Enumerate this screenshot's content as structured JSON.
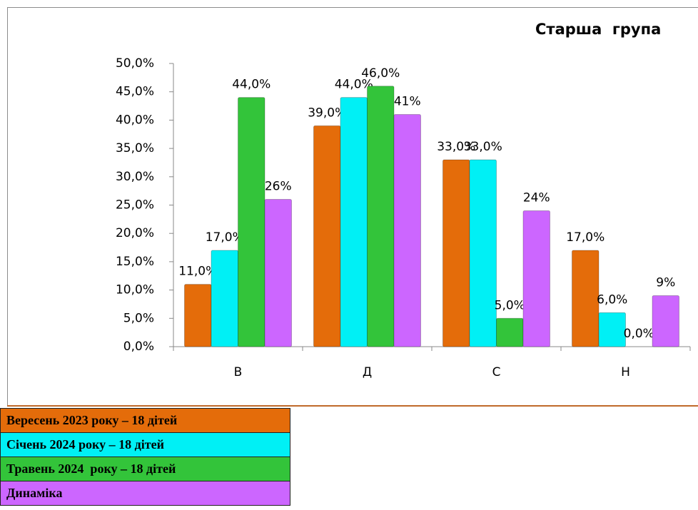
{
  "chart_data": {
    "type": "bar",
    "title": "Старша  група",
    "categories": [
      "В",
      "Д",
      "С",
      "Н"
    ],
    "series": [
      {
        "name": "Вересень 2023 року – 18 дітей",
        "color": "#E46C0A",
        "values": [
          11,
          39,
          33,
          17
        ],
        "value_labels": [
          "11,0%",
          "39,0%",
          "33,0%",
          "17,0%"
        ]
      },
      {
        "name": "Січень 2024 року – 18 дітей",
        "color": "#00F0F5",
        "values": [
          17,
          44,
          33,
          6
        ],
        "value_labels": [
          "17,0%",
          "44,0%",
          "33,0%",
          "6,0%"
        ]
      },
      {
        "name": "Травень 2024  року – 18 дітей",
        "color": "#33C43A",
        "values": [
          44,
          46,
          5,
          0
        ],
        "value_labels": [
          "44,0%",
          "46,0%",
          "5,0%",
          "0,0%"
        ]
      },
      {
        "name": "Динаміка",
        "color": "#CC66FF",
        "values": [
          26,
          41,
          24,
          9
        ],
        "value_labels": [
          "26%",
          "41%",
          "24%",
          "9%"
        ]
      }
    ],
    "ylim": [
      0,
      50
    ],
    "yticks": [
      {
        "value": 0,
        "label": "0,0%"
      },
      {
        "value": 5,
        "label": "5,0%"
      },
      {
        "value": 10,
        "label": "10,0%"
      },
      {
        "value": 15,
        "label": "15,0%"
      },
      {
        "value": 20,
        "label": "20,0%"
      },
      {
        "value": 25,
        "label": "25,0%"
      },
      {
        "value": 30,
        "label": "30,0%"
      },
      {
        "value": 35,
        "label": "35,0%"
      },
      {
        "value": 40,
        "label": "40,0%"
      },
      {
        "value": 45,
        "label": "45,0%"
      },
      {
        "value": 50,
        "label": "50,0%"
      }
    ],
    "grid": false
  }
}
